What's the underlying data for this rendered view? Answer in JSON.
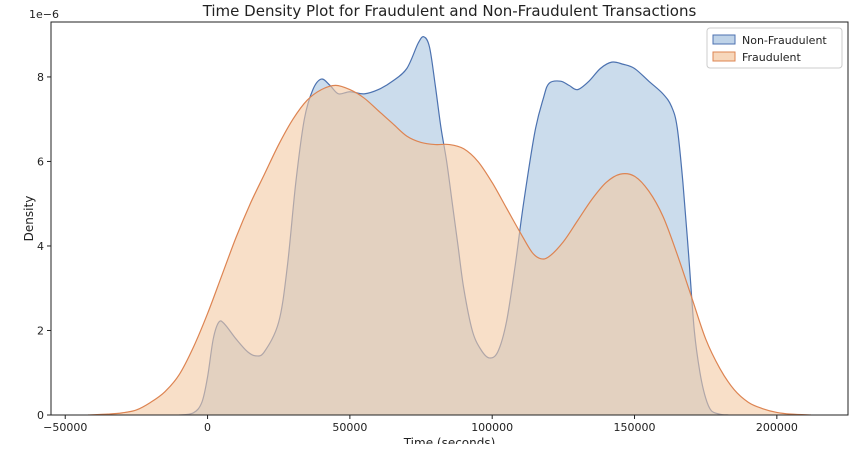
{
  "chart_data": {
    "type": "area",
    "title": "Time Density Plot for Fraudulent and Non-Fraudulent Transactions",
    "xlabel": "Time (seconds)",
    "ylabel": "Density",
    "y_scale_label": "1e−6",
    "xlim": [
      -55000,
      225000
    ],
    "ylim": [
      0,
      9.3
    ],
    "x_ticks": [
      -50000,
      0,
      50000,
      100000,
      150000,
      200000
    ],
    "x_tick_labels": [
      "−50000",
      "0",
      "50000",
      "100000",
      "150000",
      "200000"
    ],
    "y_ticks": [
      0,
      2,
      4,
      6,
      8
    ],
    "y_tick_labels": [
      "0",
      "2",
      "4",
      "6",
      "8"
    ],
    "grid": false,
    "legend_position": "top-right",
    "series": [
      {
        "name": "Non-Fraudulent",
        "color": "#4c72b0",
        "fill": "#a9c4e0",
        "points": [
          [
            -10000,
            0
          ],
          [
            -5000,
            0.05
          ],
          [
            -2000,
            0.3
          ],
          [
            0,
            0.9
          ],
          [
            2000,
            1.8
          ],
          [
            4000,
            2.2
          ],
          [
            6000,
            2.15
          ],
          [
            10000,
            1.8
          ],
          [
            14000,
            1.5
          ],
          [
            17000,
            1.4
          ],
          [
            20000,
            1.5
          ],
          [
            25000,
            2.2
          ],
          [
            28000,
            3.5
          ],
          [
            31000,
            5.5
          ],
          [
            34000,
            7.0
          ],
          [
            37000,
            7.7
          ],
          [
            40000,
            7.95
          ],
          [
            43000,
            7.8
          ],
          [
            46000,
            7.6
          ],
          [
            50000,
            7.65
          ],
          [
            55000,
            7.6
          ],
          [
            60000,
            7.7
          ],
          [
            65000,
            7.9
          ],
          [
            70000,
            8.2
          ],
          [
            74000,
            8.8
          ],
          [
            76000,
            8.95
          ],
          [
            78000,
            8.7
          ],
          [
            80000,
            7.8
          ],
          [
            82000,
            6.8
          ],
          [
            84000,
            6.0
          ],
          [
            86000,
            5.0
          ],
          [
            88000,
            4.0
          ],
          [
            90000,
            3.0
          ],
          [
            93000,
            2.0
          ],
          [
            96000,
            1.55
          ],
          [
            99000,
            1.35
          ],
          [
            102000,
            1.5
          ],
          [
            105000,
            2.2
          ],
          [
            108000,
            3.5
          ],
          [
            111000,
            5.0
          ],
          [
            115000,
            6.7
          ],
          [
            118000,
            7.5
          ],
          [
            120000,
            7.85
          ],
          [
            124000,
            7.9
          ],
          [
            127000,
            7.8
          ],
          [
            130000,
            7.7
          ],
          [
            134000,
            7.9
          ],
          [
            138000,
            8.2
          ],
          [
            142000,
            8.35
          ],
          [
            146000,
            8.3
          ],
          [
            150000,
            8.2
          ],
          [
            155000,
            7.9
          ],
          [
            160000,
            7.6
          ],
          [
            163000,
            7.3
          ],
          [
            165000,
            6.8
          ],
          [
            167000,
            5.5
          ],
          [
            169000,
            3.8
          ],
          [
            171000,
            2.0
          ],
          [
            173000,
            1.0
          ],
          [
            175000,
            0.4
          ],
          [
            177000,
            0.1
          ],
          [
            180000,
            0.02
          ],
          [
            183000,
            0
          ]
        ]
      },
      {
        "name": "Fraudulent",
        "color": "#dd8452",
        "fill": "#f4c9a4",
        "points": [
          [
            -42000,
            0
          ],
          [
            -35000,
            0.02
          ],
          [
            -30000,
            0.05
          ],
          [
            -25000,
            0.12
          ],
          [
            -20000,
            0.3
          ],
          [
            -15000,
            0.55
          ],
          [
            -10000,
            0.95
          ],
          [
            -5000,
            1.6
          ],
          [
            0,
            2.4
          ],
          [
            5000,
            3.3
          ],
          [
            10000,
            4.2
          ],
          [
            15000,
            5.0
          ],
          [
            20000,
            5.7
          ],
          [
            25000,
            6.4
          ],
          [
            30000,
            7.0
          ],
          [
            35000,
            7.45
          ],
          [
            40000,
            7.7
          ],
          [
            45000,
            7.8
          ],
          [
            50000,
            7.7
          ],
          [
            55000,
            7.5
          ],
          [
            60000,
            7.2
          ],
          [
            65000,
            6.9
          ],
          [
            70000,
            6.6
          ],
          [
            75000,
            6.45
          ],
          [
            80000,
            6.4
          ],
          [
            85000,
            6.4
          ],
          [
            90000,
            6.3
          ],
          [
            95000,
            6.0
          ],
          [
            100000,
            5.5
          ],
          [
            105000,
            4.9
          ],
          [
            110000,
            4.3
          ],
          [
            114000,
            3.85
          ],
          [
            117000,
            3.7
          ],
          [
            120000,
            3.75
          ],
          [
            125000,
            4.1
          ],
          [
            130000,
            4.6
          ],
          [
            135000,
            5.1
          ],
          [
            140000,
            5.5
          ],
          [
            145000,
            5.7
          ],
          [
            150000,
            5.65
          ],
          [
            155000,
            5.3
          ],
          [
            160000,
            4.7
          ],
          [
            165000,
            3.8
          ],
          [
            170000,
            2.8
          ],
          [
            175000,
            1.8
          ],
          [
            180000,
            1.1
          ],
          [
            185000,
            0.6
          ],
          [
            190000,
            0.3
          ],
          [
            195000,
            0.15
          ],
          [
            200000,
            0.06
          ],
          [
            205000,
            0.02
          ],
          [
            212000,
            0
          ]
        ]
      }
    ]
  }
}
